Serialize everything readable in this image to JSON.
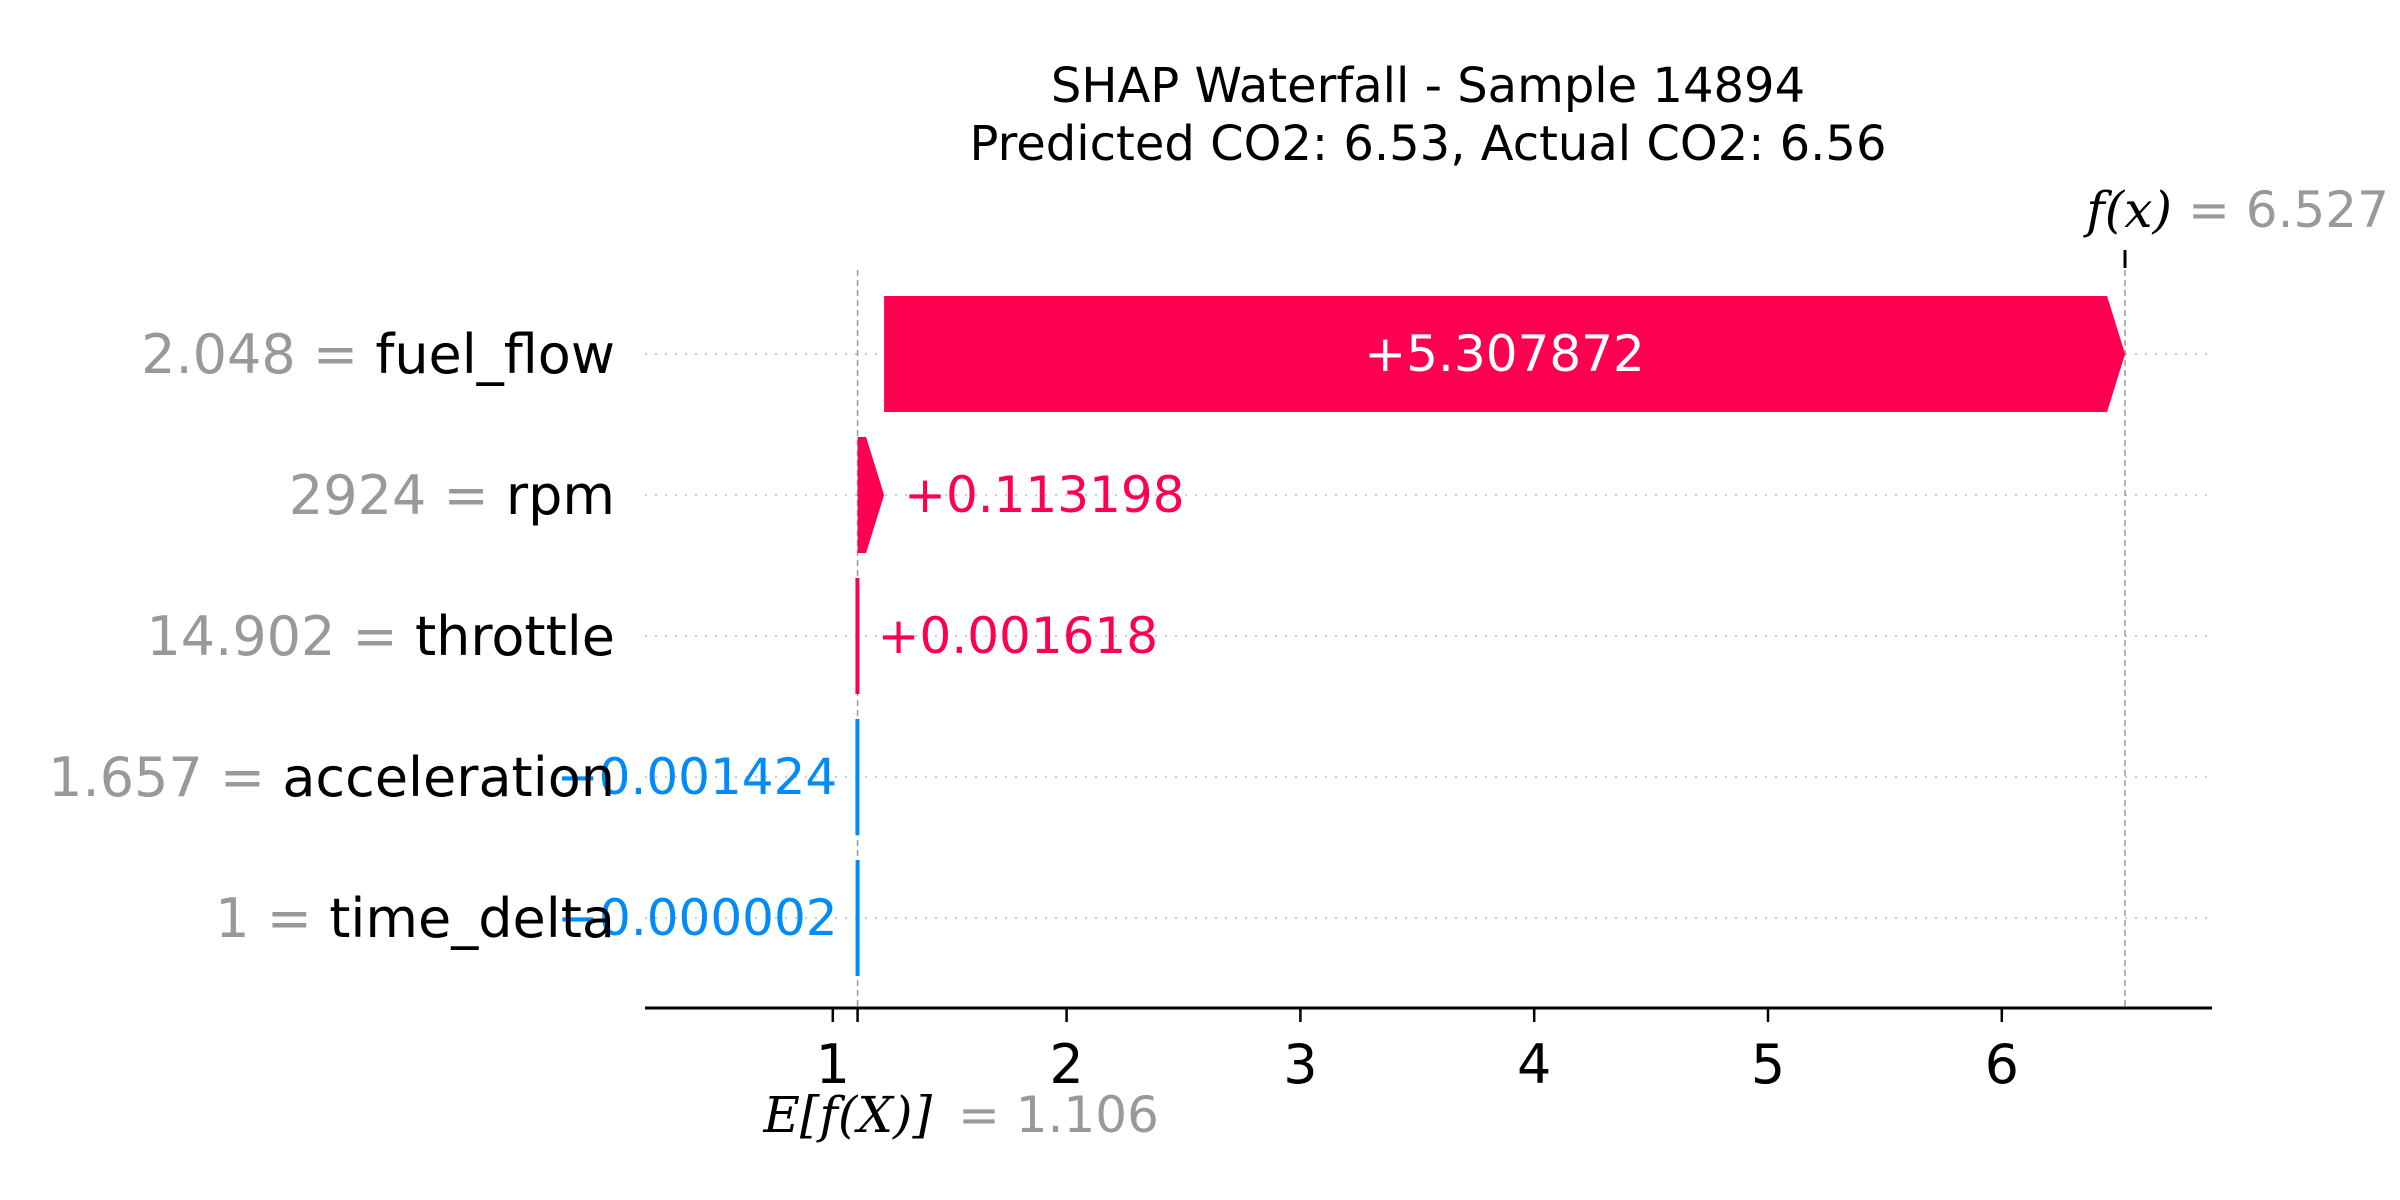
{
  "chart_data": {
    "type": "waterfall",
    "title": "SHAP Waterfall - Sample 14894",
    "subtitle": "Predicted CO2: 6.53, Actual CO2: 6.56",
    "base_value": 1.106,
    "base_label": "E[f(X)]",
    "output_value": 6.527,
    "output_label": "f(x)",
    "xlim": [
      0.2,
      6.9
    ],
    "xticks": [
      1,
      2,
      3,
      4,
      5,
      6
    ],
    "features": [
      {
        "name": "fuel_flow",
        "value": "2.048",
        "shap": 5.307872,
        "label": "+5.307872"
      },
      {
        "name": "rpm",
        "value": "2924",
        "shap": 0.113198,
        "label": "+0.113198"
      },
      {
        "name": "throttle",
        "value": "14.902",
        "shap": 0.001618,
        "label": "+0.001618"
      },
      {
        "name": "acceleration",
        "value": "1.657",
        "shap": -0.001424,
        "label": "−0.001424"
      },
      {
        "name": "time_delta",
        "value": "1",
        "shap": -2e-06,
        "label": "−0.000002"
      }
    ],
    "positive_color": "#ff0051",
    "negative_color": "#008bfb",
    "grid": "dotted horizontal row lines"
  }
}
